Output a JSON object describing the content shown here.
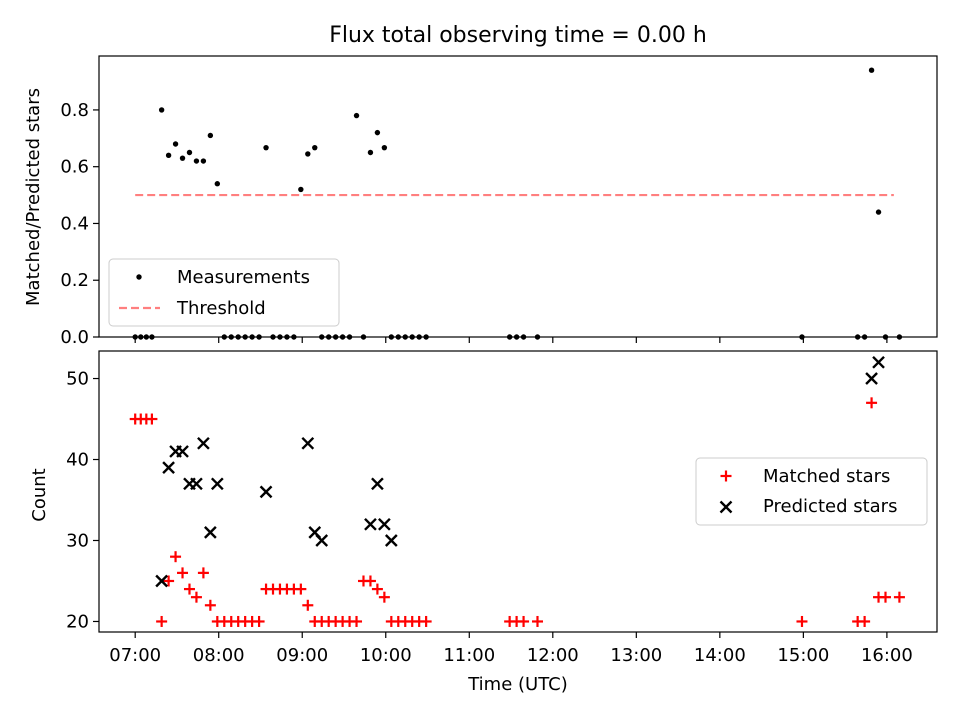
{
  "title": "Flux total observing time = 0.00 h",
  "colors": {
    "measurement": "#000000",
    "threshold": "#ff7f7f",
    "matched": "#ff0000",
    "predicted": "#000000"
  },
  "chart_data": [
    {
      "type": "scatter",
      "ylabel": "Matched/Predicted stars",
      "xlim": [
        "06:34",
        "16:36"
      ],
      "ylim": [
        0,
        0.99
      ],
      "yticks": [
        "0.0",
        "0.2",
        "0.4",
        "0.6",
        "0.8"
      ],
      "legend_position": "lower left",
      "legend": {
        "measurements": "Measurements",
        "threshold": "Threshold"
      },
      "threshold": {
        "value": 0.5,
        "x_range": [
          "07:00",
          "16:05"
        ]
      },
      "measurements": {
        "x": [
          "07:00",
          "07:04",
          "07:08",
          "07:12",
          "07:19",
          "07:24",
          "07:29",
          "07:34",
          "07:39",
          "07:44",
          "07:49",
          "07:54",
          "07:59",
          "08:04",
          "08:09",
          "08:14",
          "08:19",
          "08:24",
          "08:29",
          "08:34",
          "08:39",
          "08:44",
          "08:49",
          "08:54",
          "08:59",
          "09:04",
          "09:09",
          "09:14",
          "09:19",
          "09:24",
          "09:29",
          "09:34",
          "09:39",
          "09:44",
          "09:49",
          "09:54",
          "09:59",
          "10:04",
          "10:09",
          "10:14",
          "10:19",
          "10:24",
          "10:29",
          "11:29",
          "11:34",
          "11:39",
          "11:49",
          "14:59",
          "15:39",
          "15:44",
          "15:49",
          "15:54",
          "15:59",
          "16:09"
        ],
        "y": [
          0,
          0,
          0,
          0,
          0.8,
          0.64,
          0.68,
          0.63,
          0.65,
          0.62,
          0.62,
          0.71,
          0.54,
          0,
          0,
          0,
          0,
          0,
          0,
          0.667,
          0,
          0,
          0,
          0,
          0.52,
          0.645,
          0.667,
          0,
          0,
          0,
          0,
          0,
          0.78,
          0,
          0.65,
          0.72,
          0.667,
          0,
          0,
          0,
          0,
          0,
          0,
          0,
          0,
          0,
          0,
          0,
          0,
          0,
          0.94,
          0.44,
          0,
          0
        ]
      }
    },
    {
      "type": "scatter",
      "xlabel": "Time (UTC)",
      "ylabel": "Count",
      "xlim": [
        "06:34",
        "16:36"
      ],
      "ylim": [
        18.7,
        53.4
      ],
      "xticks": [
        "07:00",
        "08:00",
        "09:00",
        "10:00",
        "11:00",
        "12:00",
        "13:00",
        "14:00",
        "15:00",
        "16:00"
      ],
      "yticks": [
        "20",
        "30",
        "40",
        "50"
      ],
      "legend_position": "center right",
      "series": [
        {
          "name": "Matched stars",
          "marker": "plus",
          "x": [
            "07:00",
            "07:04",
            "07:08",
            "07:12",
            "07:19",
            "07:24",
            "07:29",
            "07:34",
            "07:39",
            "07:44",
            "07:49",
            "07:54",
            "07:59",
            "08:04",
            "08:09",
            "08:14",
            "08:19",
            "08:24",
            "08:29",
            "08:34",
            "08:39",
            "08:44",
            "08:49",
            "08:54",
            "08:59",
            "09:04",
            "09:09",
            "09:14",
            "09:19",
            "09:24",
            "09:29",
            "09:34",
            "09:39",
            "09:44",
            "09:49",
            "09:54",
            "09:59",
            "10:04",
            "10:09",
            "10:14",
            "10:19",
            "10:24",
            "10:29",
            "11:29",
            "11:34",
            "11:39",
            "11:49",
            "14:59",
            "15:39",
            "15:44",
            "15:49",
            "15:54",
            "15:59",
            "16:09"
          ],
          "y": [
            45,
            45,
            45,
            45,
            20,
            25,
            28,
            26,
            24,
            23,
            26,
            22,
            20,
            20,
            20,
            20,
            20,
            20,
            20,
            24,
            24,
            24,
            24,
            24,
            24,
            22,
            20,
            20,
            20,
            20,
            20,
            20,
            20,
            25,
            25,
            24,
            23,
            20,
            20,
            20,
            20,
            20,
            20,
            20,
            20,
            20,
            20,
            20,
            20,
            20,
            47,
            23,
            23,
            23
          ]
        },
        {
          "name": "Predicted stars",
          "marker": "x",
          "x": [
            "07:19",
            "07:24",
            "07:29",
            "07:34",
            "07:39",
            "07:44",
            "07:49",
            "07:54",
            "07:59",
            "08:34",
            "09:04",
            "09:09",
            "09:14",
            "09:49",
            "09:54",
            "09:59",
            "10:04",
            "15:49",
            "15:54"
          ],
          "y": [
            25,
            39,
            41,
            41,
            37,
            37,
            42,
            31,
            37,
            36,
            42,
            31,
            30,
            32,
            37,
            32,
            30,
            50,
            52
          ]
        }
      ]
    }
  ]
}
